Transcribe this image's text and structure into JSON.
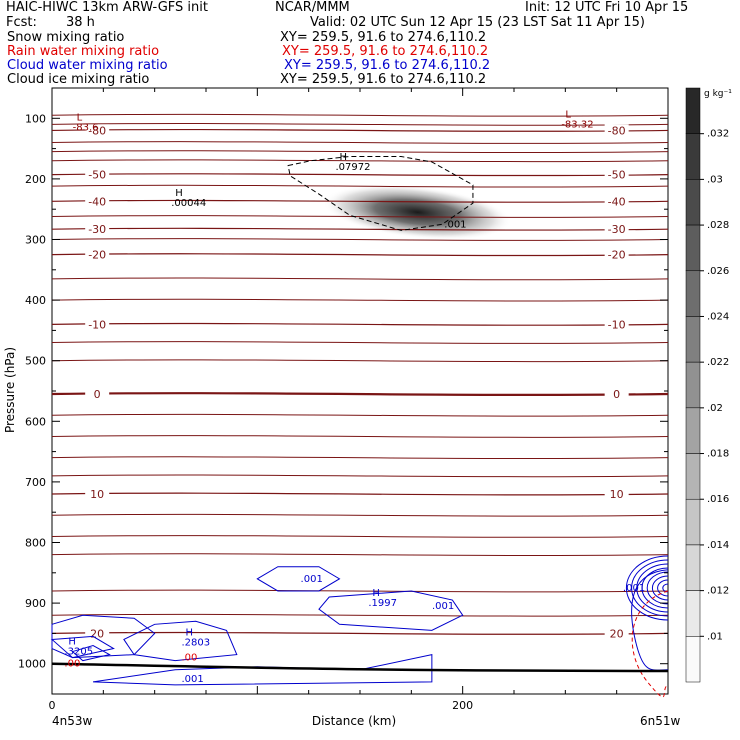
{
  "header": {
    "title_left": "HAIC-HIWC 13km ARW-GFS init",
    "org": "NCAR/MMM",
    "init": "Init: 12 UTC Fri 10 Apr 15",
    "fcst_label": "Fcst:",
    "fcst_value": "38 h",
    "valid": "Valid: 02 UTC Sun 12 Apr 15 (23 LST Sat 11 Apr 15)"
  },
  "fields": [
    {
      "name": "Snow mixing ratio",
      "xy": "XY= 259.5, 91.6 to 274.6,110.2",
      "color": "#000000"
    },
    {
      "name": "Rain water mixing ratio",
      "xy": "XY= 259.5, 91.6 to 274.6,110.2",
      "color": "#e00000"
    },
    {
      "name": "Cloud water mixing ratio",
      "xy": "XY= 259.5, 91.6 to 274.6,110.2",
      "color": "#0000cc"
    },
    {
      "name": "Cloud ice mixing ratio",
      "xy": "XY= 259.5, 91.6 to 274.6,110.2",
      "color": "#000000"
    }
  ],
  "chart_data": {
    "type": "contour cross-section",
    "ylabel": "Pressure (hPa)",
    "xlabel": "Distance (km)",
    "x_ticks": [
      0,
      200
    ],
    "xlim": [
      0,
      300
    ],
    "y_ticks": [
      100,
      200,
      300,
      400,
      500,
      600,
      700,
      800,
      900,
      1000
    ],
    "ylim": [
      50,
      1050
    ],
    "x_endpoints": {
      "left": "4n53w",
      "right": "6n51w"
    },
    "colorbar": {
      "units": "g kg⁻¹",
      "ticks": [
        ".032",
        ".03",
        ".028",
        ".026",
        ".024",
        ".022",
        ".02",
        ".018",
        ".016",
        ".014",
        ".012",
        ".01"
      ]
    },
    "temperature_contours": [
      {
        "label": "-80",
        "p": 120
      },
      {
        "label": "-50",
        "p": 193
      },
      {
        "label": "-40",
        "p": 237
      },
      {
        "label": "-30",
        "p": 283
      },
      {
        "label": "-20",
        "p": 325
      },
      {
        "label": "-10",
        "p": 440
      },
      {
        "label": "0",
        "p": 555
      },
      {
        "label": "10",
        "p": 720
      },
      {
        "label": "20",
        "p": 950
      }
    ],
    "annotations": [
      {
        "text": "L",
        "sub": "-83.6",
        "x": 12,
        "p": 120,
        "color": "#8b0000"
      },
      {
        "text": "L",
        "sub": "-83.32",
        "x": 250,
        "p": 115,
        "color": "#8b0000"
      },
      {
        "text": "H",
        "sub": ".00044",
        "x": 60,
        "p": 245,
        "color": "#000000"
      },
      {
        "text": "H",
        "sub": ".07972",
        "x": 140,
        "p": 185,
        "color": "#000000"
      },
      {
        "text": "",
        "sub": ".001",
        "x": 193,
        "p": 280,
        "color": "#000000"
      },
      {
        "text": "",
        "sub": ".001",
        "x": 123,
        "p": 865,
        "color": "#0000cc"
      },
      {
        "text": "H",
        "sub": ".1997",
        "x": 156,
        "p": 905,
        "color": "#0000cc"
      },
      {
        "text": "",
        "sub": ".001",
        "x": 187,
        "p": 910,
        "color": "#0000cc"
      },
      {
        "text": "H",
        "sub": ".2803",
        "x": 65,
        "p": 970,
        "color": "#0000cc"
      },
      {
        "text": "",
        "sub": ".00",
        "x": 65,
        "p": 995,
        "color": "#e00000"
      },
      {
        "text": "H",
        "sub": ".3205",
        "x": 8,
        "p": 985,
        "color": "#0000cc"
      },
      {
        "text": "",
        "sub": ".00",
        "x": 8,
        "p": 1005,
        "color": "#e00000"
      },
      {
        "text": "",
        "sub": ".001",
        "x": 65,
        "p": 1030,
        "color": "#0000cc"
      },
      {
        "text": "",
        "sub": ".001",
        "x": 280,
        "p": 880,
        "color": "#0000cc"
      }
    ]
  }
}
